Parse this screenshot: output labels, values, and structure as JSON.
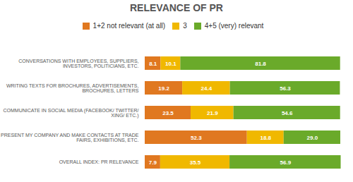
{
  "chart_data": {
    "type": "bar",
    "orientation": "horizontal",
    "stacked": true,
    "title": "RELEVANCE OF PR",
    "categories": [
      "CONVERSATIONS WITH EMPLOYEES, SUPPLIERS,\nINVESTORS, POLITICIANS, ETC.",
      "WRITING TEXTS FOR BROCHURES, ADVERTISEMENTS,\nBROCHURES, LETTERS",
      "COMMUNICATE IN SOCIAL MEDIA (FACEBOOK/ TWITTER/\nXING/ ETC.)",
      "PRESENT MY COMPANY AND MAKE CONTACTS AT TRADE\nFAIRS, EXHIBITIONS, ETC.",
      "OVERALL INDEX: PR RELEVANCE"
    ],
    "series": [
      {
        "name": "1+2 not relevant (at all)",
        "color": "#e07820",
        "values": [
          8.1,
          19.2,
          23.5,
          52.3,
          7.9
        ]
      },
      {
        "name": "3",
        "color": "#f0b800",
        "values": [
          10.1,
          24.4,
          21.9,
          18.8,
          35.5
        ]
      },
      {
        "name": "4+5 (very) relevant",
        "color": "#6aaa2a",
        "values": [
          81.8,
          56.3,
          54.6,
          29.0,
          56.9
        ],
        "value_labels": [
          "81.8",
          "56.3",
          "54.6",
          "29.0",
          "56.9"
        ]
      }
    ],
    "xlim": [
      0,
      103
    ],
    "data_labels": true,
    "tick_labels": "y",
    "legend": "top",
    "grid": false
  }
}
